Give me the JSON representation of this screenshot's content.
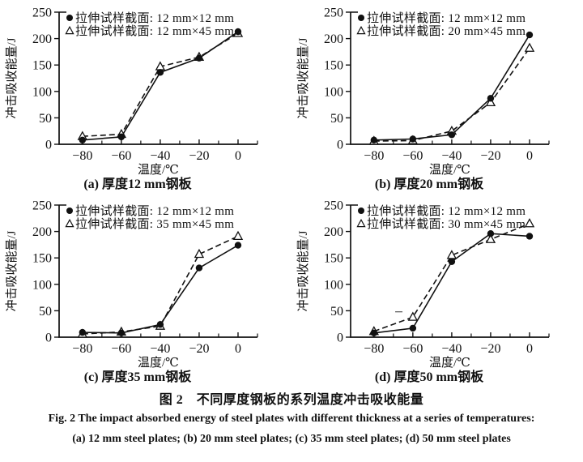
{
  "page": {
    "background": "#ffffff",
    "ink": "#111111"
  },
  "figure_captions": {
    "cn": "图 2　不同厚度钢板的系列温度冲击吸收能量",
    "en_line1": "Fig. 2   The impact absorbed energy of steel plates with different thickness at a series of temperatures:",
    "en_line2": "(a) 12 mm steel plates; (b) 20 mm steel plates; (c) 35 mm steel plates; (d) 50 mm steel plates"
  },
  "chart_data": [
    {
      "id": "a",
      "type": "line",
      "caption": "(a) 厚度12 mm钢板",
      "xlabel": "温度/℃",
      "ylabel": "冲击吸收能量/J",
      "xlim": [
        -92,
        10
      ],
      "ylim": [
        0,
        250
      ],
      "xticks": [
        -80,
        -60,
        -40,
        -20,
        0
      ],
      "xminorticks": [
        -70,
        -50,
        -30,
        -10,
        10
      ],
      "yticks": [
        0,
        50,
        100,
        150,
        200,
        250
      ],
      "grid": false,
      "legend_position": "top-left-inside",
      "x": [
        -80,
        -60,
        -40,
        -20,
        0
      ],
      "series": [
        {
          "name": "拉伸试样截面: 12 mm×12 mm",
          "marker": "filled-circle",
          "line": "solid",
          "values": [
            8,
            14,
            136,
            163,
            213
          ]
        },
        {
          "name": "拉伸试样截面: 12 mm×45 mm",
          "marker": "open-triangle",
          "line": "dashed",
          "values": [
            15,
            19,
            147,
            165,
            210
          ]
        }
      ]
    },
    {
      "id": "b",
      "type": "line",
      "caption": "(b) 厚度20 mm钢板",
      "xlabel": "温度/℃",
      "ylabel": "冲击吸收能量/J",
      "xlim": [
        -92,
        10
      ],
      "ylim": [
        0,
        250
      ],
      "xticks": [
        -80,
        -60,
        -40,
        -20,
        0
      ],
      "xminorticks": [
        -70,
        -50,
        -30,
        -10,
        10
      ],
      "yticks": [
        0,
        50,
        100,
        150,
        200,
        250
      ],
      "grid": false,
      "legend_position": "top-left-inside",
      "x": [
        -80,
        -60,
        -40,
        -20,
        0
      ],
      "series": [
        {
          "name": "拉伸试样截面: 12 mm×12 mm",
          "marker": "filled-circle",
          "line": "solid",
          "values": [
            8,
            10,
            18,
            87,
            207
          ]
        },
        {
          "name": "拉伸试样截面: 20 mm×45 mm",
          "marker": "open-triangle",
          "line": "dashed",
          "values": [
            6,
            7,
            25,
            79,
            182
          ]
        }
      ]
    },
    {
      "id": "c",
      "type": "line",
      "caption": "(c) 厚度35 mm钢板",
      "xlabel": "温度/℃",
      "ylabel": "冲击吸收能量/J",
      "xlim": [
        -92,
        10
      ],
      "ylim": [
        0,
        250
      ],
      "xticks": [
        -80,
        -60,
        -40,
        -20,
        0
      ],
      "xminorticks": [
        -70,
        -50,
        -30,
        -10,
        10
      ],
      "yticks": [
        0,
        50,
        100,
        150,
        200,
        250
      ],
      "grid": false,
      "legend_position": "top-left-inside",
      "x": [
        -80,
        -60,
        -40,
        -20,
        0
      ],
      "series": [
        {
          "name": "拉伸试样截面: 12 mm×12 mm",
          "marker": "filled-circle",
          "line": "solid",
          "values": [
            9,
            8,
            24,
            131,
            174
          ]
        },
        {
          "name": "拉伸试样截面: 35 mm×45 mm",
          "marker": "open-triangle",
          "line": "dashed",
          "values": [
            6,
            10,
            21,
            157,
            191
          ]
        }
      ]
    },
    {
      "id": "d",
      "type": "line",
      "caption": "(d) 厚度50 mm钢板",
      "xlabel": "温度/℃",
      "ylabel": "冲击吸收能量/J",
      "xlim": [
        -92,
        10
      ],
      "ylim": [
        0,
        250
      ],
      "xticks": [
        -80,
        -60,
        -40,
        -20,
        0
      ],
      "xminorticks": [
        -70,
        -50,
        -30,
        -10,
        10
      ],
      "yticks": [
        0,
        50,
        100,
        150,
        200,
        250
      ],
      "grid": false,
      "legend_position": "top-left-inside",
      "stray_dash": {
        "x": -67,
        "y": 48
      },
      "x": [
        -80,
        -60,
        -40,
        -20,
        0
      ],
      "series": [
        {
          "name": "拉伸试样截面: 12 mm×12 mm",
          "marker": "filled-circle",
          "line": "solid",
          "values": [
            8,
            17,
            143,
            196,
            191
          ]
        },
        {
          "name": "拉伸试样截面: 30 mm×45 mm",
          "marker": "open-triangle",
          "line": "dashed",
          "values": [
            11,
            38,
            155,
            185,
            215
          ]
        }
      ]
    }
  ]
}
